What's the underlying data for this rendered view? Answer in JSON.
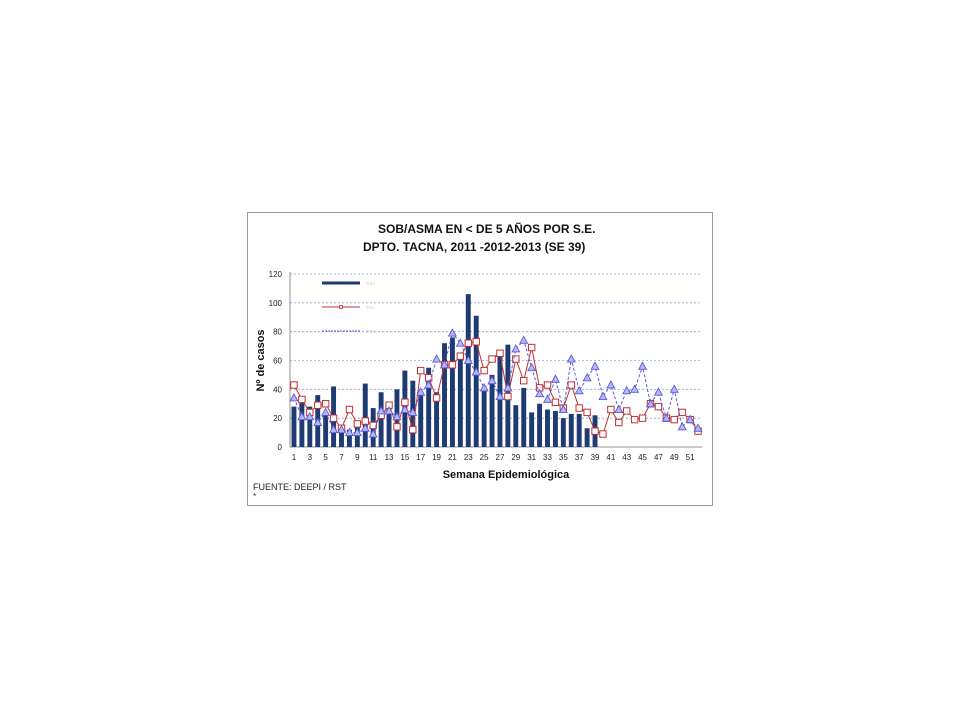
{
  "chart_data": {
    "type": "bar",
    "title": "SOB/ASMA EN < DE 5 AÑOS POR S.E.",
    "subtitle": "DPTO. TACNA, 2011 -2012-2013 (SE 39)",
    "xlabel": "Semana Epidemiológica",
    "ylabel": "Nº de casos",
    "ylim": [
      0,
      120
    ],
    "yticks": [
      "0",
      "20",
      "40",
      "60",
      "80",
      "100",
      "120"
    ],
    "x": [
      1,
      2,
      3,
      4,
      5,
      6,
      7,
      8,
      9,
      10,
      11,
      12,
      13,
      14,
      15,
      16,
      17,
      18,
      19,
      20,
      21,
      22,
      23,
      24,
      25,
      26,
      27,
      28,
      29,
      30,
      31,
      32,
      33,
      34,
      35,
      36,
      37,
      38,
      39,
      40,
      41,
      42,
      43,
      44,
      45,
      46,
      47,
      48,
      49,
      50,
      51,
      52
    ],
    "xtick_labels": [
      "1",
      "3",
      "5",
      "7",
      "9",
      "11",
      "13",
      "15",
      "17",
      "19",
      "21",
      "23",
      "25",
      "27",
      "29",
      "31",
      "33",
      "35",
      "37",
      "39",
      "41",
      "43",
      "45",
      "47",
      "49",
      "51"
    ],
    "grid": true,
    "legend_position": "top-left",
    "series": [
      {
        "name": "2013",
        "kind": "bar",
        "color": "#1f3b73",
        "values": [
          28,
          33,
          28,
          36,
          22,
          42,
          14,
          12,
          14,
          44,
          27,
          38,
          30,
          40,
          53,
          46,
          37,
          55,
          38,
          72,
          76,
          65,
          106,
          91,
          40,
          50,
          65,
          71,
          29,
          41,
          24,
          30,
          26,
          25,
          20,
          23,
          23,
          13,
          22,
          null,
          null,
          null,
          null,
          null,
          null,
          null,
          null,
          null,
          null,
          null,
          null,
          null
        ]
      },
      {
        "name": "2012",
        "kind": "line",
        "marker": "square",
        "color": "#c03030",
        "values": [
          43,
          33,
          24,
          29,
          30,
          20,
          13,
          26,
          16,
          18,
          15,
          22,
          29,
          14,
          31,
          12,
          53,
          48,
          34,
          57,
          57,
          63,
          72,
          73,
          53,
          61,
          65,
          35,
          61,
          46,
          69,
          41,
          43,
          31,
          27,
          43,
          27,
          24,
          11,
          9,
          26,
          17,
          25,
          19,
          20,
          30,
          28,
          20,
          19,
          24,
          19,
          11
        ]
      },
      {
        "name": "2011",
        "kind": "line",
        "marker": "triangle",
        "color": "#5a5ad8",
        "values": [
          34,
          21,
          21,
          17,
          24,
          12,
          12,
          10,
          10,
          13,
          9,
          25,
          25,
          21,
          26,
          24,
          38,
          43,
          61,
          57,
          79,
          72,
          60,
          52,
          41,
          46,
          35,
          41,
          68,
          74,
          55,
          37,
          33,
          47,
          26,
          61,
          39,
          48,
          56,
          35,
          43,
          26,
          39,
          40,
          56,
          30,
          38,
          20,
          40,
          14,
          19,
          13
        ]
      }
    ]
  }
}
